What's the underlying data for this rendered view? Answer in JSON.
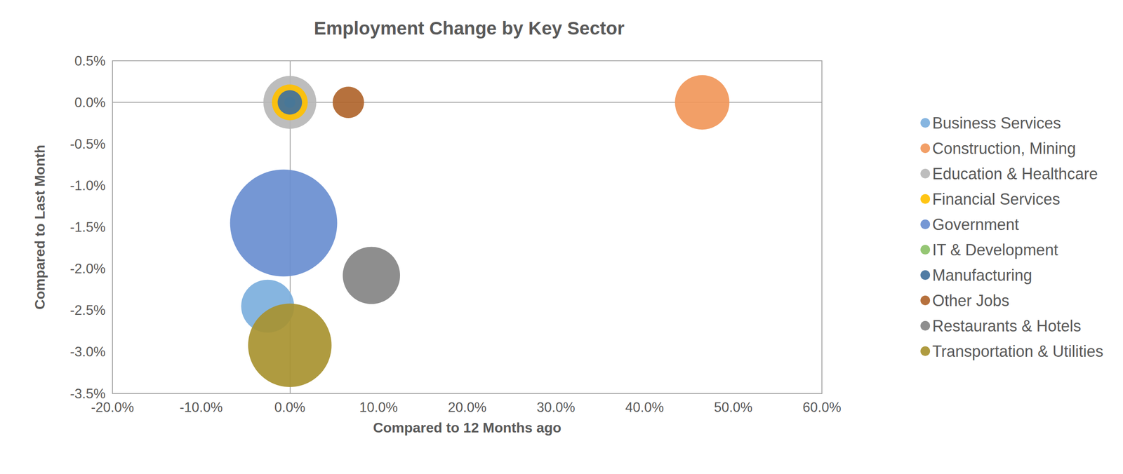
{
  "chart_data": {
    "type": "bubble",
    "title": "Employment Change by Key Sector",
    "x_label": "Compared to 12 Months ago",
    "y_label": "Compared to Last Month",
    "xlim": [
      -20,
      60
    ],
    "xticks": [
      {
        "value": -20,
        "label": "-20.0%"
      },
      {
        "value": -10,
        "label": "-10.0%"
      },
      {
        "value": 0,
        "label": "0.0%"
      },
      {
        "value": 10,
        "label": "10.0%"
      },
      {
        "value": 20,
        "label": "20.0%"
      },
      {
        "value": 30,
        "label": "30.0%"
      },
      {
        "value": 40,
        "label": "40.0%"
      },
      {
        "value": 50,
        "label": "50.0%"
      },
      {
        "value": 60,
        "label": "60.0%"
      }
    ],
    "ylim": [
      -3.5,
      0.5
    ],
    "yticks": [
      {
        "value": -3.5,
        "label": "-3.5%"
      },
      {
        "value": -3,
        "label": "-3.0%"
      },
      {
        "value": -2.5,
        "label": "-2.5%"
      },
      {
        "value": -2,
        "label": "-2.0%"
      },
      {
        "value": -1.5,
        "label": "-1.5%"
      },
      {
        "value": -1,
        "label": "-1.0%"
      },
      {
        "value": -0.5,
        "label": "-0.5%"
      },
      {
        "value": 0,
        "label": "0.0%"
      },
      {
        "value": 0.5,
        "label": "0.5%"
      }
    ],
    "grid": false,
    "legend": "right",
    "series": [
      {
        "name": "Business Services",
        "color": "#7cafdd",
        "x": [
          -2.5
        ],
        "y": [
          -2.45
        ],
        "sizes": [
          1370
        ]
      },
      {
        "name": "Construction, Mining",
        "color": "#f1975a",
        "x": [
          46.5
        ],
        "y": [
          0
        ],
        "sizes": [
          1450
        ]
      },
      {
        "name": "Education & Healthcare",
        "color": "#b7b7b7",
        "x": [
          0
        ],
        "y": [
          0
        ],
        "sizes": [
          1370
        ]
      },
      {
        "name": "Financial Services",
        "color": "#ffc000",
        "x": [
          0
        ],
        "y": [
          0
        ],
        "sizes": [
          625
        ]
      },
      {
        "name": "Government",
        "color": "#698ed0",
        "x": [
          -0.7
        ],
        "y": [
          -1.45
        ],
        "sizes": [
          5600
        ]
      },
      {
        "name": "IT & Development",
        "color": "#8cc168",
        "x": [
          0
        ],
        "y": [
          0
        ],
        "sizes": [
          60
        ]
      },
      {
        "name": "Manufacturing",
        "color": "#41719c",
        "x": [
          0
        ],
        "y": [
          0
        ],
        "sizes": [
          290
        ]
      },
      {
        "name": "Other Jobs",
        "color": "#b0652d",
        "x": [
          6.6
        ],
        "y": [
          0
        ],
        "sizes": [
          480
        ]
      },
      {
        "name": "Restaurants & Hotels",
        "color": "#848484",
        "x": [
          9.2
        ],
        "y": [
          -2.08
        ],
        "sizes": [
          1600
        ]
      },
      {
        "name": "Transportation & Utilities",
        "color": "#a89230",
        "x": [
          0
        ],
        "y": [
          -2.92
        ],
        "sizes": [
          3400
        ]
      }
    ]
  }
}
